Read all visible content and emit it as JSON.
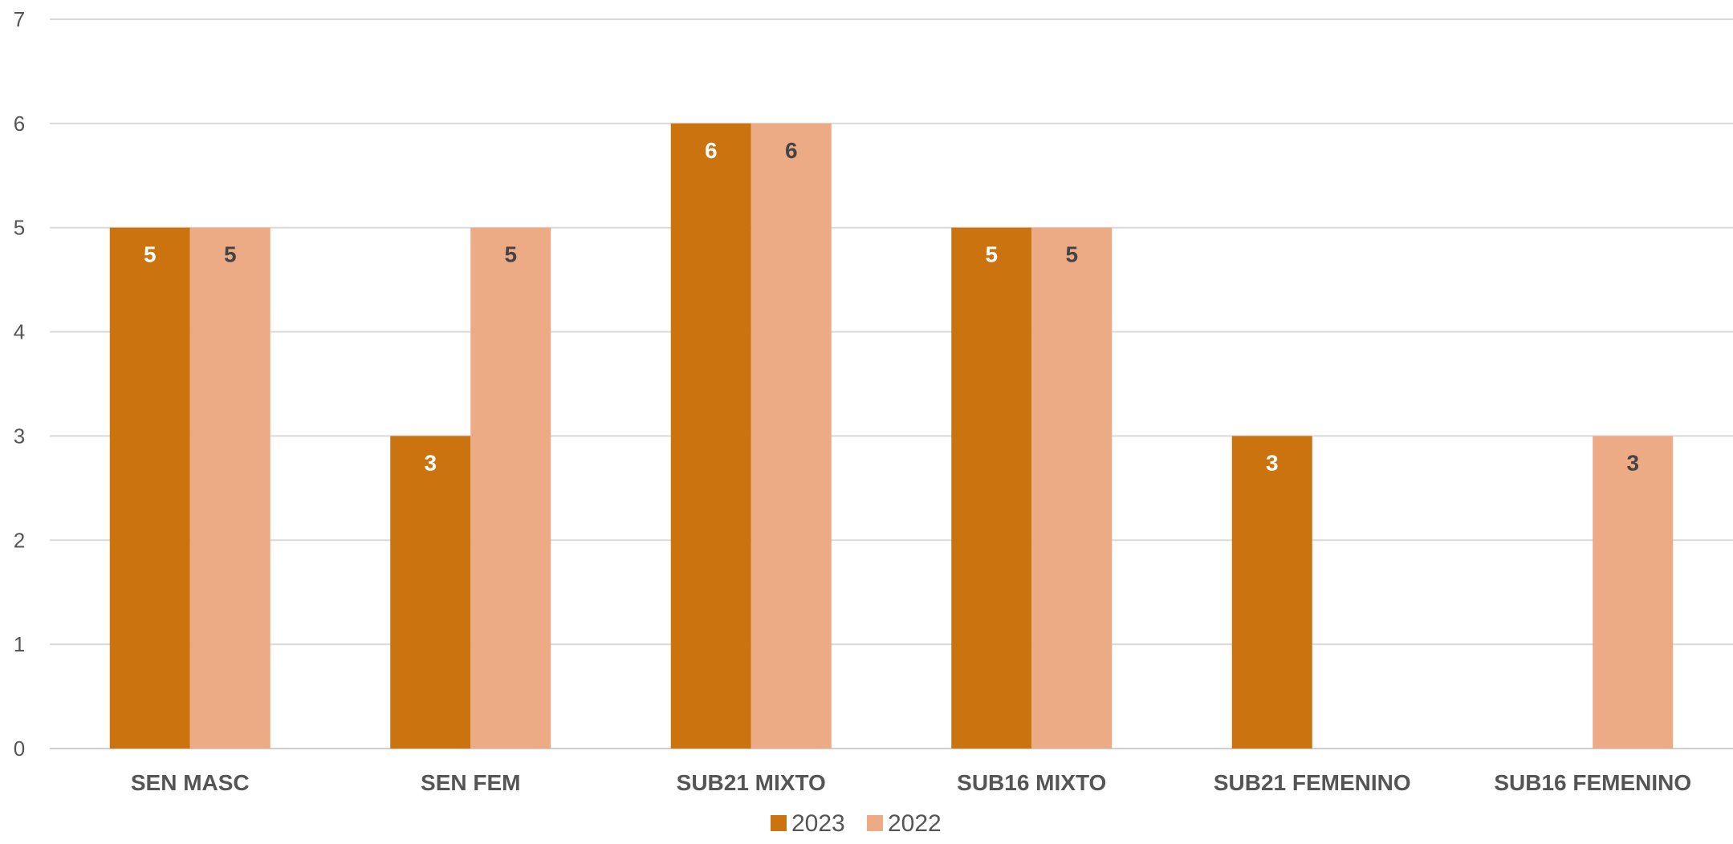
{
  "chart_data": {
    "type": "bar",
    "categories": [
      "SEN MASC",
      "SEN FEM",
      "SUB21 MIXTO",
      "SUB16 MIXTO",
      "SUB21 FEMENINO",
      "SUB16 FEMENINO"
    ],
    "series": [
      {
        "name": "2023",
        "values": [
          5,
          3,
          6,
          5,
          3,
          null
        ],
        "color": "#CB730F"
      },
      {
        "name": "2022",
        "values": [
          5,
          5,
          6,
          5,
          null,
          3
        ],
        "color": "#ECAA85"
      }
    ],
    "ylim": [
      0,
      7
    ],
    "yticks": [
      0,
      1,
      2,
      3,
      4,
      5,
      6,
      7
    ],
    "grid": true,
    "legend_position": "bottom-center",
    "data_label_colors": [
      "#ffffff",
      "#444444"
    ],
    "title": "",
    "xlabel": "",
    "ylabel": ""
  }
}
